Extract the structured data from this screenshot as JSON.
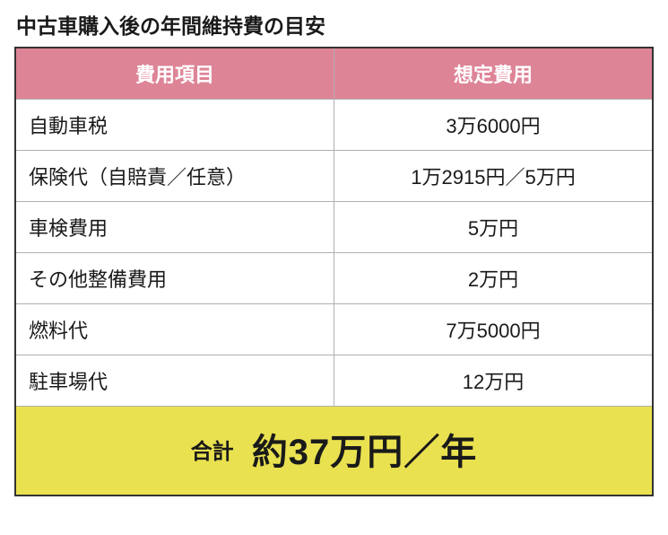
{
  "title": "中古車購入後の年間維持費の目安",
  "table": {
    "type": "table",
    "header_bg": "#de8497",
    "header_text_color": "#ffffff",
    "row_bg": "#ffffff",
    "total_bg": "#e9e14f",
    "border_color": "#333333",
    "inner_border_color": "#b0b0b0",
    "title_fontsize": 23,
    "header_fontsize": 22,
    "cell_fontsize": 22,
    "total_label_fontsize": 24,
    "total_value_fontsize": 40,
    "columns": [
      "費用項目",
      "想定費用"
    ],
    "rows": [
      {
        "item": "自動車税",
        "cost": "3万6000円"
      },
      {
        "item": "保険代（自賠責／任意）",
        "cost": "1万2915円／5万円"
      },
      {
        "item": "車検費用",
        "cost": "5万円"
      },
      {
        "item": "その他整備費用",
        "cost": "2万円"
      },
      {
        "item": "燃料代",
        "cost": "7万5000円"
      },
      {
        "item": "駐車場代",
        "cost": "12万円"
      }
    ],
    "total": {
      "label": "合計",
      "value": "約37万円／年"
    }
  }
}
